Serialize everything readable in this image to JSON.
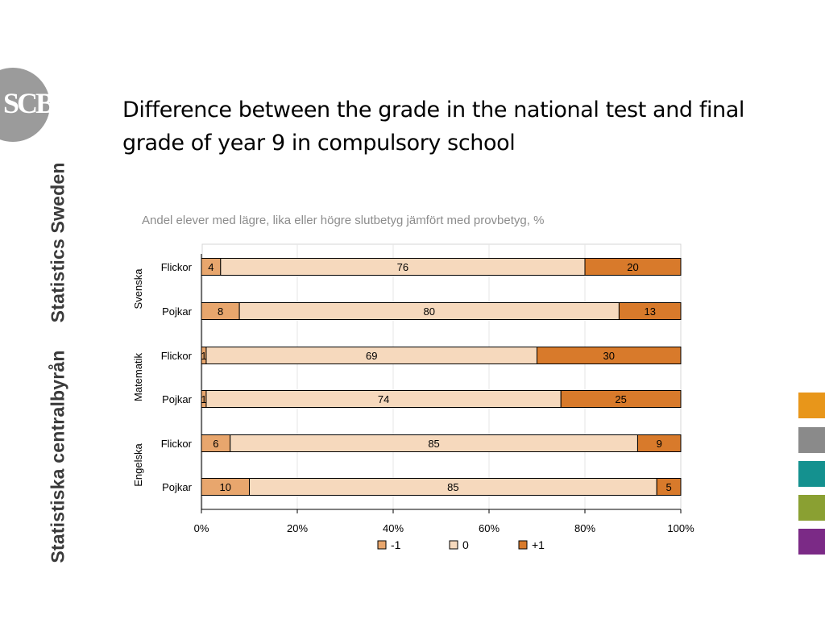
{
  "logo": {
    "text": "SCB"
  },
  "brand": {
    "name_en": "Statistics Sweden",
    "name_sv": "Statistiska centralbyrån"
  },
  "slide": {
    "title": "Difference between the grade in the national test and final grade of year 9 in compulsory school"
  },
  "side_swatches": [
    "#e8961a",
    "#8a8a8a",
    "#14918f",
    "#8aa032",
    "#7b2a86"
  ],
  "chart_data": {
    "type": "bar",
    "orientation": "horizontal",
    "stacked": "percent",
    "subtitle": "Andel elever med lägre, lika eller högre slutbetyg jämfört med provbetyg, %",
    "groups": [
      {
        "name": "Svenska",
        "categories": [
          "Flickor",
          "Pojkar"
        ]
      },
      {
        "name": "Matematik",
        "categories": [
          "Flickor",
          "Pojkar"
        ]
      },
      {
        "name": "Engelska",
        "categories": [
          "Flickor",
          "Pojkar"
        ]
      }
    ],
    "categories": [
      "Flickor",
      "Pojkar",
      "Flickor",
      "Pojkar",
      "Flickor",
      "Pojkar"
    ],
    "series": [
      {
        "name": "-1",
        "color": "#e8a66d",
        "values": [
          4,
          8,
          1,
          1,
          6,
          10
        ]
      },
      {
        "name": "0",
        "color": "#f6d9bd",
        "values": [
          76,
          80,
          69,
          74,
          85,
          85
        ]
      },
      {
        "name": "+1",
        "color": "#d87a2b",
        "values": [
          20,
          13,
          30,
          25,
          9,
          5
        ]
      }
    ],
    "xaxis": {
      "ticks": [
        "0%",
        "20%",
        "40%",
        "60%",
        "80%",
        "100%"
      ],
      "range": [
        0,
        100
      ]
    },
    "grid": true,
    "legend": "bottom"
  }
}
